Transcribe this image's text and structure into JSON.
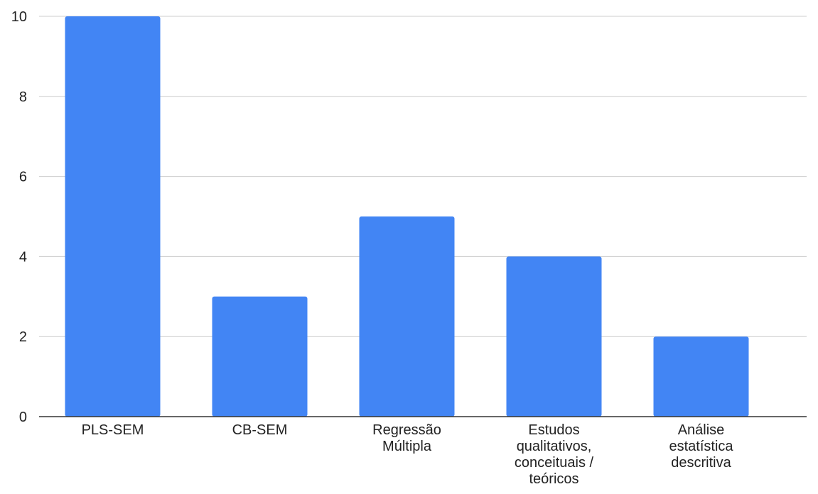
{
  "chart_data": {
    "type": "bar",
    "categories": [
      [
        "PLS-SEM"
      ],
      [
        "CB-SEM"
      ],
      [
        "Regressão",
        "Múltipla"
      ],
      [
        "Estudos",
        "qualitativos,",
        "conceituais /",
        "teóricos"
      ],
      [
        "Análise",
        "estatística",
        "descritiva"
      ]
    ],
    "values": [
      10,
      3,
      5,
      4,
      2
    ],
    "ylim": [
      0,
      10
    ],
    "yticks": [
      0,
      2,
      4,
      6,
      8,
      10
    ],
    "title": "",
    "xlabel": "",
    "ylabel": "",
    "grid": true,
    "bar_color": "#4285F4",
    "grid_color": "#cccccc",
    "axis_color": "#333333"
  }
}
